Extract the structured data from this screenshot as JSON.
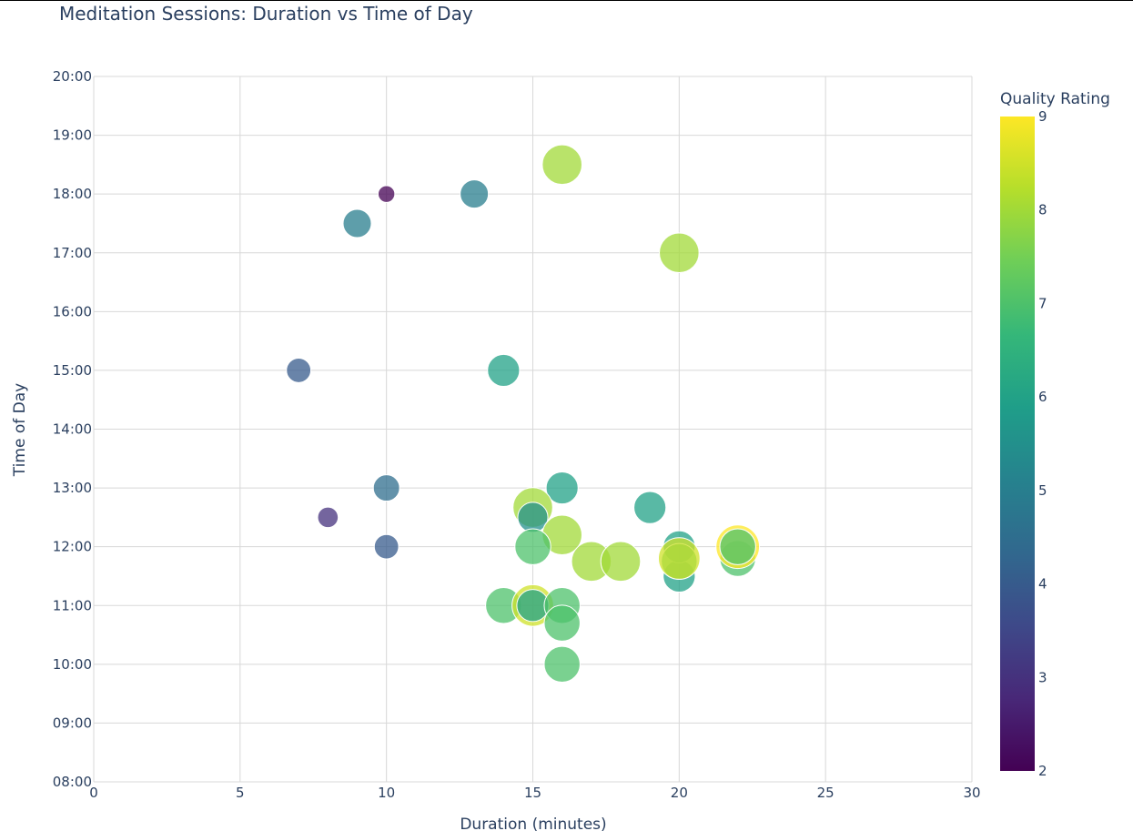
{
  "chart_data": {
    "type": "scatter",
    "title": "Meditation Sessions: Duration vs Time of Day",
    "xlabel": "Duration (minutes)",
    "ylabel": "Time of Day",
    "xlim": [
      0,
      30
    ],
    "ylim": [
      "08:00",
      "20:00"
    ],
    "x_ticks": [
      0,
      5,
      10,
      15,
      20,
      25,
      30
    ],
    "y_ticks": [
      "08:00",
      "09:00",
      "10:00",
      "11:00",
      "12:00",
      "13:00",
      "14:00",
      "15:00",
      "16:00",
      "17:00",
      "18:00",
      "19:00",
      "20:00"
    ],
    "grid": true,
    "colorbar": {
      "title": "Quality Rating",
      "min": 2,
      "max": 9,
      "ticks": [
        2,
        3,
        4,
        5,
        6,
        7,
        8,
        9
      ],
      "colorscale": "Viridis",
      "colors": [
        "#440154",
        "#482878",
        "#3e4989",
        "#31688e",
        "#26828e",
        "#1f9e89",
        "#35b779",
        "#6ece58",
        "#b5de2b",
        "#fde725"
      ]
    },
    "marker_size_encoding": "quality",
    "points": [
      {
        "x": 10,
        "y": "18:00",
        "quality": 2
      },
      {
        "x": 13,
        "y": "18:00",
        "quality": 5
      },
      {
        "x": 9,
        "y": "17:30",
        "quality": 5
      },
      {
        "x": 16,
        "y": "18:30",
        "quality": 8
      },
      {
        "x": 20,
        "y": "17:00",
        "quality": 8
      },
      {
        "x": 7,
        "y": "15:00",
        "quality": 4
      },
      {
        "x": 14,
        "y": "15:00",
        "quality": 6
      },
      {
        "x": 10,
        "y": "13:00",
        "quality": 4.5
      },
      {
        "x": 8,
        "y": "12:30",
        "quality": 3
      },
      {
        "x": 10,
        "y": "12:00",
        "quality": 4
      },
      {
        "x": 16,
        "y": "13:00",
        "quality": 6
      },
      {
        "x": 19,
        "y": "12:40",
        "quality": 6
      },
      {
        "x": 15,
        "y": "12:40",
        "quality": 8
      },
      {
        "x": 15,
        "y": "12:30",
        "quality": 5.5
      },
      {
        "x": 16,
        "y": "12:12",
        "quality": 8
      },
      {
        "x": 15,
        "y": "12:00",
        "quality": 7
      },
      {
        "x": 17,
        "y": "11:45",
        "quality": 8
      },
      {
        "x": 18,
        "y": "11:45",
        "quality": 8
      },
      {
        "x": 20,
        "y": "11:30",
        "quality": 6
      },
      {
        "x": 20,
        "y": "12:00",
        "quality": 6
      },
      {
        "x": 20,
        "y": "11:45",
        "quality": 7
      },
      {
        "x": 20,
        "y": "11:48",
        "quality": 8.5
      },
      {
        "x": 22,
        "y": "11:48",
        "quality": 7
      },
      {
        "x": 22,
        "y": "12:00",
        "quality": 9
      },
      {
        "x": 22,
        "y": "12:00",
        "quality": 7
      },
      {
        "x": 14,
        "y": "11:00",
        "quality": 7
      },
      {
        "x": 15,
        "y": "11:00",
        "quality": 8.5
      },
      {
        "x": 15,
        "y": "11:00",
        "quality": 6
      },
      {
        "x": 16,
        "y": "11:00",
        "quality": 7
      },
      {
        "x": 16,
        "y": "10:42",
        "quality": 7
      },
      {
        "x": 16,
        "y": "10:00",
        "quality": 7
      }
    ]
  }
}
